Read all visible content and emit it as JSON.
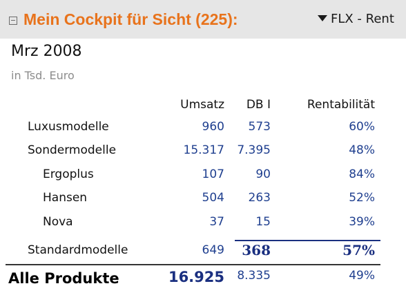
{
  "header": {
    "title": "Mein Cockpit für Sicht (225):",
    "dropdown_label": "FLX - Rent",
    "title_color": "#e8731c"
  },
  "report": {
    "period": "Mrz 2008",
    "unit": "in Tsd. Euro",
    "columns": [
      "Umsatz",
      "DB I",
      "Rentabilität"
    ],
    "rows": [
      {
        "label": "Luxusmodelle",
        "indent": 0,
        "values": [
          "960",
          "573",
          "60%"
        ]
      },
      {
        "label": "Sondermodelle",
        "indent": 0,
        "values": [
          "15.317",
          "7.395",
          "48%"
        ]
      },
      {
        "label": "Ergoplus",
        "indent": 1,
        "values": [
          "107",
          "90",
          "84%"
        ]
      },
      {
        "label": "Hansen",
        "indent": 1,
        "values": [
          "504",
          "263",
          "52%"
        ]
      },
      {
        "label": "Nova",
        "indent": 1,
        "values": [
          "37",
          "15",
          "39%"
        ]
      },
      {
        "label": "Standardmodelle",
        "indent": 0,
        "values": [
          "649",
          "368",
          "57%"
        ]
      }
    ],
    "total": {
      "label": "Alle Produkte",
      "values": [
        "16.925",
        "8.335",
        "49%"
      ]
    },
    "value_color": "#1f3f8f",
    "emphasis_color": "#1a2f80"
  }
}
